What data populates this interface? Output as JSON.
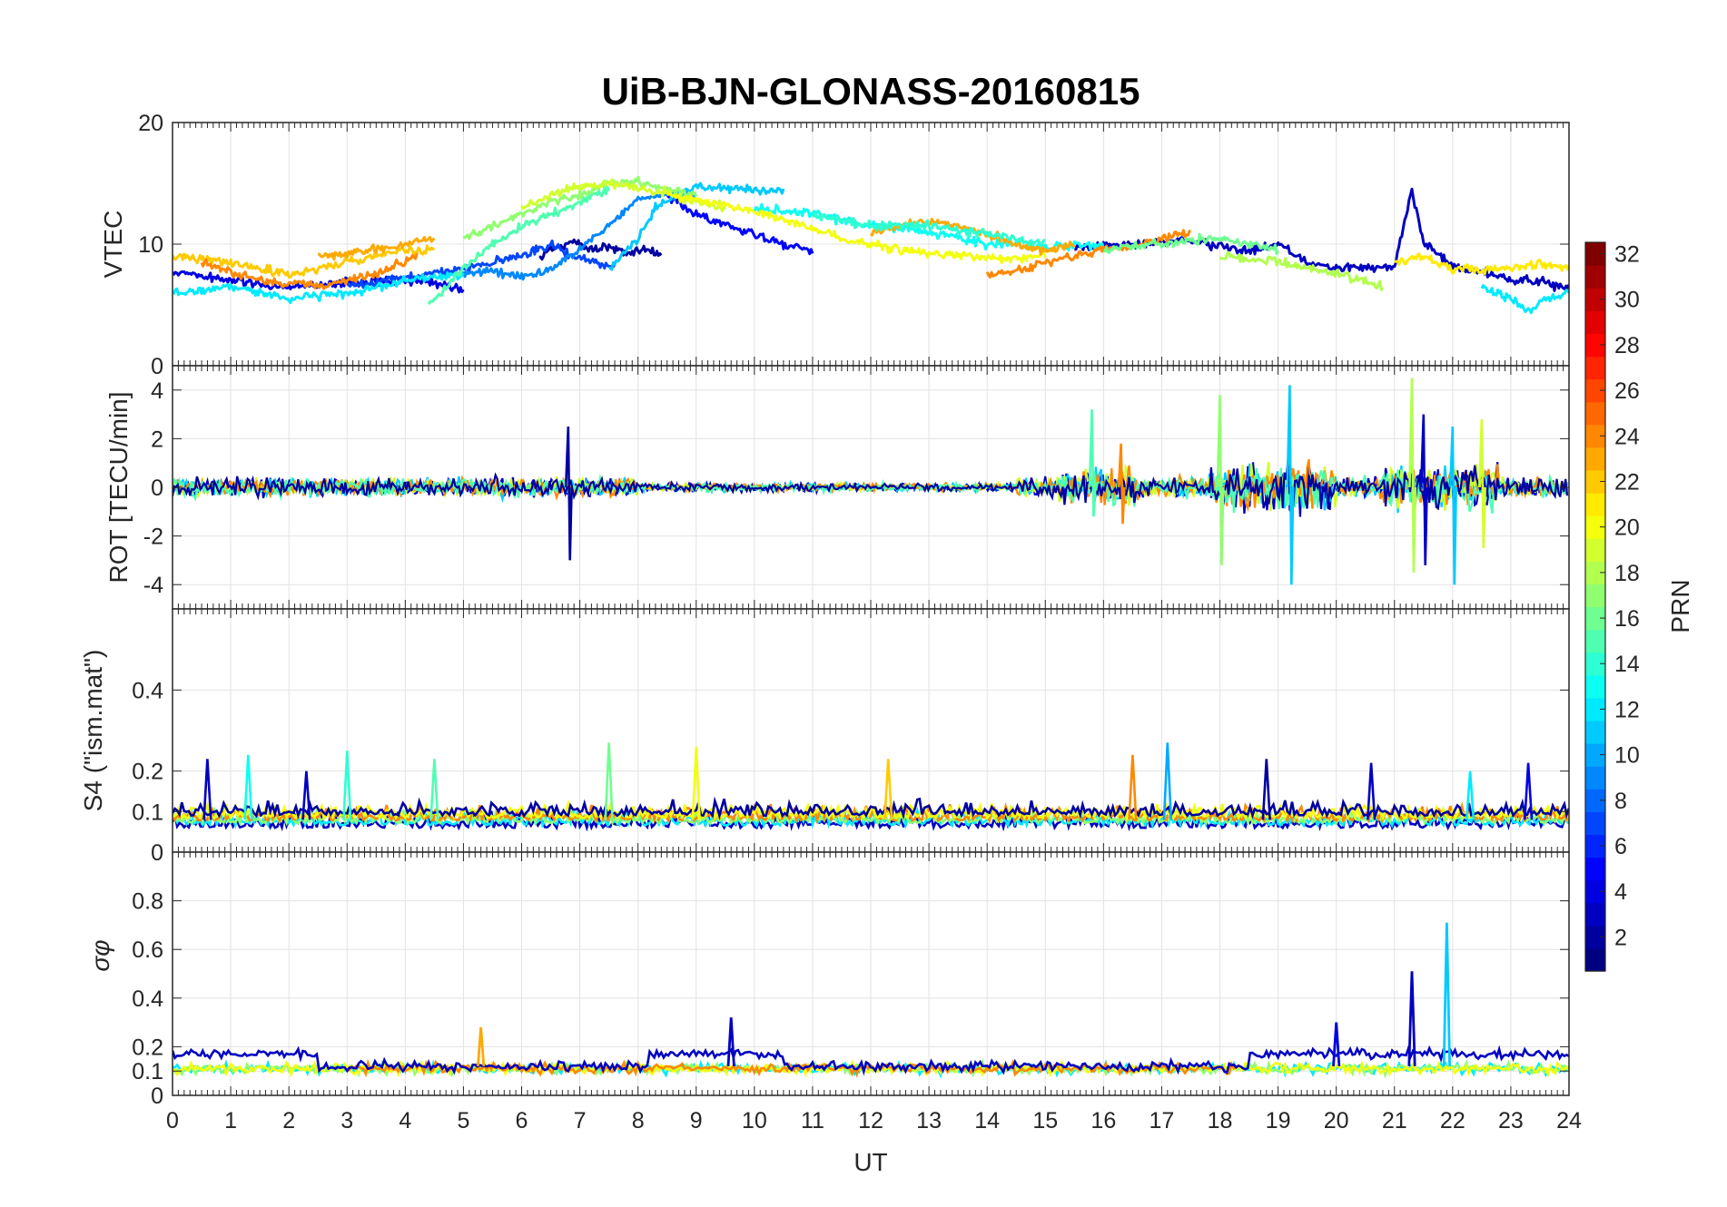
{
  "figure": {
    "title": "UiB-BJN-GLONASS-20160815",
    "xlabel": "UT"
  },
  "colorbar": {
    "label": "PRN",
    "colormap": "jet",
    "range": [
      1,
      32
    ],
    "ticks": [
      "2",
      "4",
      "6",
      "8",
      "10",
      "12",
      "14",
      "16",
      "18",
      "20",
      "22",
      "24",
      "26",
      "28",
      "30",
      "32"
    ]
  },
  "chart_data": [
    {
      "type": "line",
      "panel": "vtec",
      "ylabel": "VTEC",
      "xlim": [
        0,
        24
      ],
      "ylim": [
        0,
        20
      ],
      "yticks": [
        "0",
        "10",
        "20"
      ],
      "xticks": [
        "0",
        "1",
        "2",
        "3",
        "4",
        "5",
        "6",
        "7",
        "8",
        "9",
        "10",
        "11",
        "12",
        "13",
        "14",
        "15",
        "16",
        "17",
        "18",
        "19",
        "20",
        "21",
        "22",
        "23",
        "24"
      ],
      "grid": true,
      "series": [
        {
          "prn": 2,
          "x": [
            6.3,
            6.6,
            6.9,
            7.2,
            7.5,
            7.8,
            8.1,
            8.4
          ],
          "y": [
            9.0,
            9.8,
            10.3,
            9.6,
            9.9,
            9.3,
            9.5,
            9.2
          ]
        },
        {
          "prn": 4,
          "x": [
            0,
            1,
            2,
            3,
            3.8,
            4.5,
            5.0
          ],
          "y": [
            7.8,
            7.0,
            6.5,
            6.8,
            7.0,
            6.8,
            6.2
          ]
        },
        {
          "prn": 5,
          "x": [
            8.5,
            9.0,
            9.5,
            10.0,
            10.5,
            11.0
          ],
          "y": [
            14.0,
            12.5,
            11.5,
            10.8,
            10.0,
            9.5
          ]
        },
        {
          "prn": 3,
          "x": [
            15.5,
            16.5,
            17.5,
            18.5,
            19.0,
            19.5,
            20.0,
            21.0,
            21.3,
            21.5,
            22.0,
            23.0,
            24.0
          ],
          "y": [
            9.8,
            10.0,
            10.2,
            9.5,
            10.0,
            8.5,
            8.0,
            8.2,
            14.5,
            10.0,
            8.2,
            7.2,
            6.5
          ]
        },
        {
          "prn": 7,
          "x": [
            3.0,
            4.0,
            4.8,
            5.5,
            6.0,
            6.5,
            7.0,
            7.6
          ],
          "y": [
            6.5,
            7.3,
            7.8,
            8.5,
            9.0,
            10.0,
            8.8,
            8.2
          ]
        },
        {
          "prn": 9,
          "x": [
            5.0,
            5.5,
            6.0,
            6.5,
            7.0,
            7.5,
            8.0,
            9.0
          ],
          "y": [
            7.5,
            7.8,
            7.2,
            8.0,
            9.5,
            11.5,
            13.8,
            14.2
          ]
        },
        {
          "prn": 11,
          "x": [
            7.5,
            8.0,
            8.3,
            8.6,
            9.0,
            9.5,
            10.0,
            10.5
          ],
          "y": [
            8.0,
            10.5,
            13.0,
            14.0,
            14.8,
            14.6,
            14.5,
            14.4
          ]
        },
        {
          "prn": 12,
          "x": [
            0,
            1,
            2,
            3,
            4,
            5
          ],
          "y": [
            6.0,
            6.5,
            5.5,
            6.0,
            7.0,
            7.5
          ]
        },
        {
          "prn": 13,
          "x": [
            10.0,
            11.0,
            12.0,
            13.0,
            14.0,
            15.0,
            16.0
          ],
          "y": [
            13.0,
            12.5,
            11.5,
            11.0,
            10.0,
            9.8,
            10.0
          ]
        },
        {
          "prn": 15,
          "x": [
            4.4,
            5.0,
            5.5,
            6.0,
            6.5,
            7.0,
            7.5
          ],
          "y": [
            5.0,
            8.0,
            10.0,
            11.5,
            12.5,
            13.5,
            14.5
          ]
        },
        {
          "prn": 17,
          "x": [
            5.0,
            5.5,
            6.0,
            6.5,
            7.0,
            7.5,
            8.0,
            8.5,
            9.0
          ],
          "y": [
            10.5,
            11.5,
            12.5,
            13.5,
            14.0,
            15.0,
            15.1,
            14.5,
            14.0
          ]
        },
        {
          "prn": 18,
          "x": [
            18.0,
            18.5,
            19.0,
            19.5,
            20.0,
            20.5,
            20.8
          ],
          "y": [
            9.0,
            8.8,
            8.5,
            8.0,
            7.5,
            7.0,
            6.5
          ]
        },
        {
          "prn": 19,
          "x": [
            6.0,
            6.5,
            7.0,
            7.5,
            8.0,
            8.5,
            9.0,
            9.5
          ],
          "y": [
            13.0,
            14.0,
            14.8,
            15.0,
            14.6,
            14.2,
            13.5,
            13.0
          ]
        },
        {
          "prn": 20,
          "x": [
            8.5,
            9.5,
            10.5,
            11.5,
            12.5,
            13.5,
            14.5,
            15.0
          ],
          "y": [
            14.0,
            13.2,
            12.0,
            10.5,
            9.5,
            9.0,
            8.8,
            9.0
          ]
        },
        {
          "prn": 21,
          "x": [
            21.0,
            21.5,
            22.0,
            22.5,
            23.0,
            23.5,
            24.0
          ],
          "y": [
            8.5,
            9.0,
            8.0,
            7.8,
            8.0,
            8.5,
            8.0
          ]
        },
        {
          "prn": 22,
          "x": [
            0,
            1,
            2,
            3,
            4,
            4.5
          ],
          "y": [
            9.0,
            8.5,
            7.5,
            8.5,
            9.5,
            9.5
          ]
        },
        {
          "prn": 23,
          "x": [
            2.5,
            3.0,
            3.5,
            4.0,
            4.5
          ],
          "y": [
            9.0,
            9.2,
            9.5,
            10.0,
            10.5
          ]
        },
        {
          "prn": 24,
          "x": [
            0.5,
            1.5,
            2.5,
            3.5,
            4.2
          ],
          "y": [
            8.5,
            7.0,
            6.5,
            7.5,
            9.0
          ]
        },
        {
          "prn": 23,
          "x": [
            12.0,
            12.5,
            13.0,
            13.5,
            14.0,
            14.5,
            15.0,
            15.5
          ],
          "y": [
            11.0,
            11.5,
            11.8,
            11.5,
            10.8,
            10.0,
            9.5,
            9.8
          ]
        },
        {
          "prn": 24,
          "x": [
            14.0,
            14.5,
            15.0,
            15.5,
            16.0,
            16.5,
            17.0,
            17.5
          ],
          "y": [
            7.5,
            7.8,
            8.5,
            9.0,
            9.5,
            9.8,
            10.5,
            11.0
          ]
        },
        {
          "prn": 14,
          "x": [
            11.0,
            12.0,
            13.0,
            14.0,
            15.0
          ],
          "y": [
            12.5,
            11.5,
            11.5,
            10.8,
            10.0
          ]
        },
        {
          "prn": 12,
          "x": [
            22.5,
            23.0,
            23.3,
            23.6,
            24.0
          ],
          "y": [
            6.5,
            5.5,
            4.5,
            5.5,
            6.0
          ]
        },
        {
          "prn": 16,
          "x": [
            16.0,
            16.5,
            17.0,
            17.5,
            18.0,
            18.5,
            19.0
          ],
          "y": [
            9.5,
            9.8,
            10.0,
            10.3,
            10.5,
            10.0,
            9.5
          ]
        }
      ]
    },
    {
      "type": "line",
      "panel": "rot",
      "ylabel": "ROT [TECU/min]",
      "xlim": [
        0,
        24
      ],
      "ylim": [
        -5,
        5
      ],
      "yticks": [
        "-4",
        "-2",
        "0",
        "2",
        "4"
      ],
      "grid": true,
      "bursts": [
        {
          "t": 6.8,
          "min": -3.0,
          "max": 2.5,
          "prn": 2
        },
        {
          "t": 15.8,
          "min": -1.2,
          "max": 3.2,
          "prn": 15
        },
        {
          "t": 16.3,
          "min": -1.5,
          "max": 1.8,
          "prn": 24
        },
        {
          "t": 18.0,
          "min": -3.2,
          "max": 3.8,
          "prn": 17
        },
        {
          "t": 19.2,
          "min": -4.0,
          "max": 4.2,
          "prn": 11
        },
        {
          "t": 21.3,
          "min": -3.5,
          "max": 4.5,
          "prn": 18
        },
        {
          "t": 21.5,
          "min": -3.2,
          "max": 3.0,
          "prn": 3
        },
        {
          "t": 22.0,
          "min": -4.0,
          "max": 2.5,
          "prn": 11
        },
        {
          "t": 22.5,
          "min": -2.5,
          "max": 2.8,
          "prn": 19
        }
      ]
    },
    {
      "type": "line",
      "panel": "s4",
      "ylabel": "S4 (\"ism.mat\")",
      "xlim": [
        0,
        24
      ],
      "ylim": [
        0,
        0.6
      ],
      "yticks": [
        "0",
        "0.1",
        "0.2",
        "0.4"
      ],
      "grid": true,
      "peaks": [
        {
          "t": 0.6,
          "v": 0.23,
          "prn": 3
        },
        {
          "t": 1.3,
          "v": 0.24,
          "prn": 13
        },
        {
          "t": 2.3,
          "v": 0.2,
          "prn": 3
        },
        {
          "t": 3.0,
          "v": 0.25,
          "prn": 14
        },
        {
          "t": 4.5,
          "v": 0.23,
          "prn": 15
        },
        {
          "t": 7.5,
          "v": 0.27,
          "prn": 16
        },
        {
          "t": 9.0,
          "v": 0.26,
          "prn": 20
        },
        {
          "t": 12.3,
          "v": 0.23,
          "prn": 22
        },
        {
          "t": 16.5,
          "v": 0.24,
          "prn": 24
        },
        {
          "t": 17.1,
          "v": 0.27,
          "prn": 10
        },
        {
          "t": 18.8,
          "v": 0.23,
          "prn": 2
        },
        {
          "t": 20.6,
          "v": 0.22,
          "prn": 3
        },
        {
          "t": 22.3,
          "v": 0.2,
          "prn": 12
        },
        {
          "t": 23.3,
          "v": 0.22,
          "prn": 4
        }
      ]
    },
    {
      "type": "line",
      "panel": "sigma_phi",
      "ylabel": "σφ",
      "xlim": [
        0,
        24
      ],
      "ylim": [
        0,
        1
      ],
      "yticks": [
        "0",
        "0.1",
        "0.2",
        "0.4",
        "0.6",
        "0.8"
      ],
      "grid": true,
      "peaks": [
        {
          "t": 5.3,
          "v": 0.28,
          "prn": 23
        },
        {
          "t": 9.6,
          "v": 0.32,
          "prn": 3
        },
        {
          "t": 20.0,
          "v": 0.3,
          "prn": 4
        },
        {
          "t": 21.3,
          "v": 0.51,
          "prn": 3
        },
        {
          "t": 21.9,
          "v": 0.71,
          "prn": 11
        }
      ]
    }
  ]
}
